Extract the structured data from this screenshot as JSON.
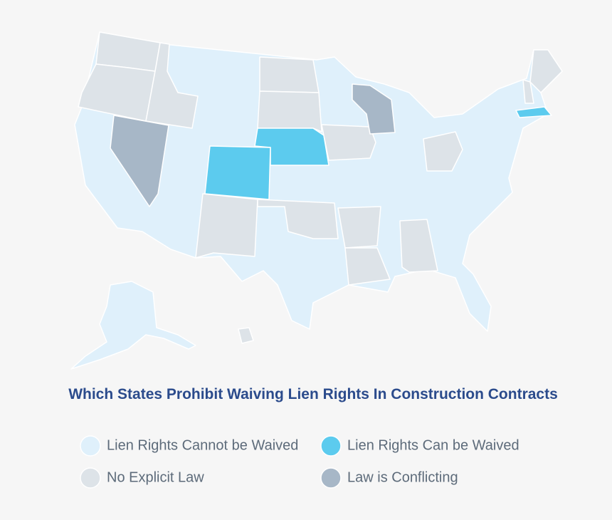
{
  "title": "Which States Prohibit Waiving Lien Rights In Construction Contracts",
  "legend": [
    {
      "label": "Lien Rights Cannot be Waived",
      "color": "#dff0fb"
    },
    {
      "label": "Lien Rights Can be Waived",
      "color": "#5ccbee"
    },
    {
      "label": "No Explicit Law",
      "color": "#dde3e8"
    },
    {
      "label": "Law is Conflicting",
      "color": "#a7b7c7"
    }
  ]
}
